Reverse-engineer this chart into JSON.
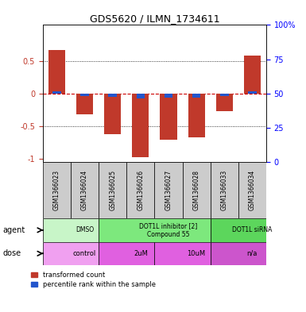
{
  "title": "GDS5620 / ILMN_1734611",
  "samples": [
    "GSM1366023",
    "GSM1366024",
    "GSM1366025",
    "GSM1366026",
    "GSM1366027",
    "GSM1366028",
    "GSM1366033",
    "GSM1366034"
  ],
  "red_values": [
    0.67,
    -0.32,
    -0.62,
    -0.97,
    -0.7,
    -0.67,
    -0.27,
    0.58
  ],
  "blue_values": [
    0.04,
    -0.04,
    -0.05,
    -0.08,
    -0.06,
    -0.06,
    -0.04,
    0.04
  ],
  "bar_width": 0.6,
  "ylim": [
    -1.05,
    1.05
  ],
  "left_yticks": [
    -1,
    -0.5,
    0,
    0.5
  ],
  "left_yticklabels": [
    "-1",
    "-0.5",
    "0",
    "0.5"
  ],
  "right_yticks": [
    0,
    25,
    50,
    75,
    100
  ],
  "right_yticklabels": [
    "0",
    "25",
    "50",
    "75",
    "100%"
  ],
  "red_color": "#c0392b",
  "blue_color": "#2255cc",
  "bg_color": "#ffffff",
  "grid_color": "#000000",
  "zero_line_color": "#cc0000",
  "agent_row": [
    {
      "label": "DMSO",
      "start": 0,
      "end": 2,
      "color": "#c8f5c8"
    },
    {
      "label": "DOT1L inhibitor [2]\nCompound 55",
      "start": 2,
      "end": 6,
      "color": "#7de87d"
    },
    {
      "label": "DOT1L siRNA",
      "start": 6,
      "end": 8,
      "color": "#5cd65c"
    }
  ],
  "dose_row": [
    {
      "label": "control",
      "start": 0,
      "end": 2,
      "color": "#f0a0f0"
    },
    {
      "label": "2uM",
      "start": 2,
      "end": 4,
      "color": "#e060e0"
    },
    {
      "label": "10uM",
      "start": 4,
      "end": 6,
      "color": "#e060e0"
    },
    {
      "label": "n/a",
      "start": 6,
      "end": 8,
      "color": "#cc55cc"
    }
  ],
  "legend_red": "transformed count",
  "legend_blue": "percentile rank within the sample",
  "agent_label": "agent",
  "dose_label": "dose",
  "sample_bg_color": "#cccccc",
  "n_samples": 8
}
